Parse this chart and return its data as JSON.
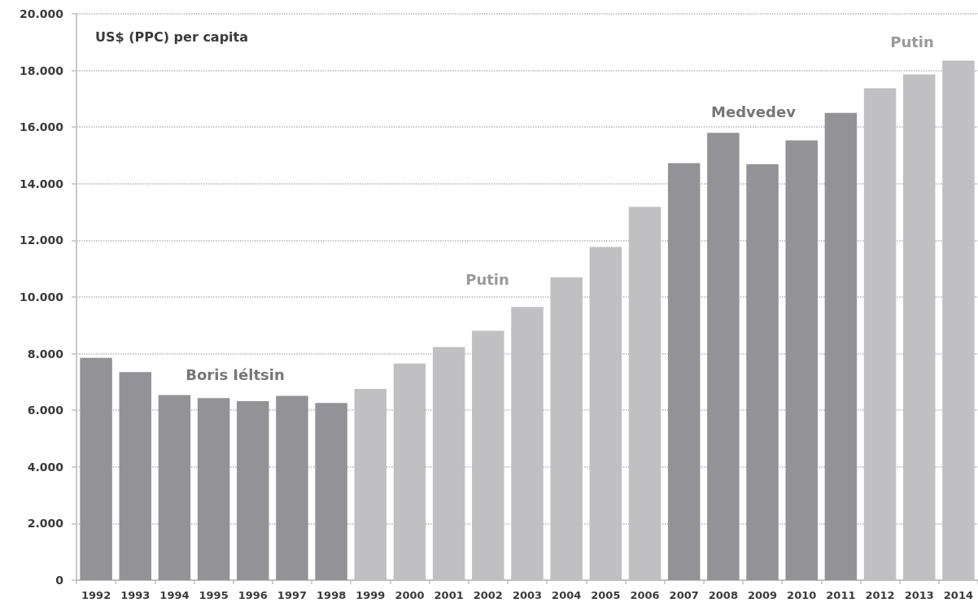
{
  "chart_data": {
    "type": "bar",
    "ylabel": "US$ (PPC) per capita",
    "categories": [
      "1992",
      "1993",
      "1994",
      "1995",
      "1996",
      "1997",
      "1998",
      "1999",
      "2000",
      "2001",
      "2002",
      "2003",
      "2004",
      "2005",
      "2006",
      "2007",
      "2008",
      "2009",
      "2010",
      "2011",
      "2012",
      "2013",
      "2014"
    ],
    "values": [
      7850,
      7350,
      6540,
      6430,
      6320,
      6510,
      6260,
      6750,
      7650,
      8230,
      8810,
      9650,
      10700,
      11770,
      13180,
      14730,
      15800,
      14690,
      15530,
      16500,
      17370,
      17860,
      18350
    ],
    "colors": [
      "#939397",
      "#939397",
      "#939397",
      "#939397",
      "#939397",
      "#939397",
      "#939397",
      "#c0c0c3",
      "#c0c0c3",
      "#c0c0c3",
      "#c0c0c3",
      "#c0c0c3",
      "#c0c0c3",
      "#c0c0c3",
      "#c0c0c3",
      "#939397",
      "#939397",
      "#939397",
      "#939397",
      "#939397",
      "#c0c0c3",
      "#c0c0c3",
      "#c0c0c3"
    ],
    "ylim": [
      0,
      20000
    ],
    "yticks": [
      0,
      {
        "value": 2000,
        "label": "2.000"
      },
      {
        "value": 4000,
        "label": "4.000"
      },
      {
        "value": 6000,
        "label": "6.000"
      },
      {
        "value": 8000,
        "label": "8.000"
      },
      {
        "value": 10000,
        "label": "10.000"
      },
      {
        "value": 12000,
        "label": "12.000"
      },
      {
        "value": 14000,
        "label": "14.000"
      },
      {
        "value": 16000,
        "label": "16.000"
      },
      {
        "value": 18000,
        "label": "18.000"
      },
      {
        "value": 20000,
        "label": "20.000"
      }
    ],
    "grid": "y",
    "annotations": [
      "Boris Iéltsin",
      "Putin",
      "Medvedev",
      "Putin"
    ]
  }
}
